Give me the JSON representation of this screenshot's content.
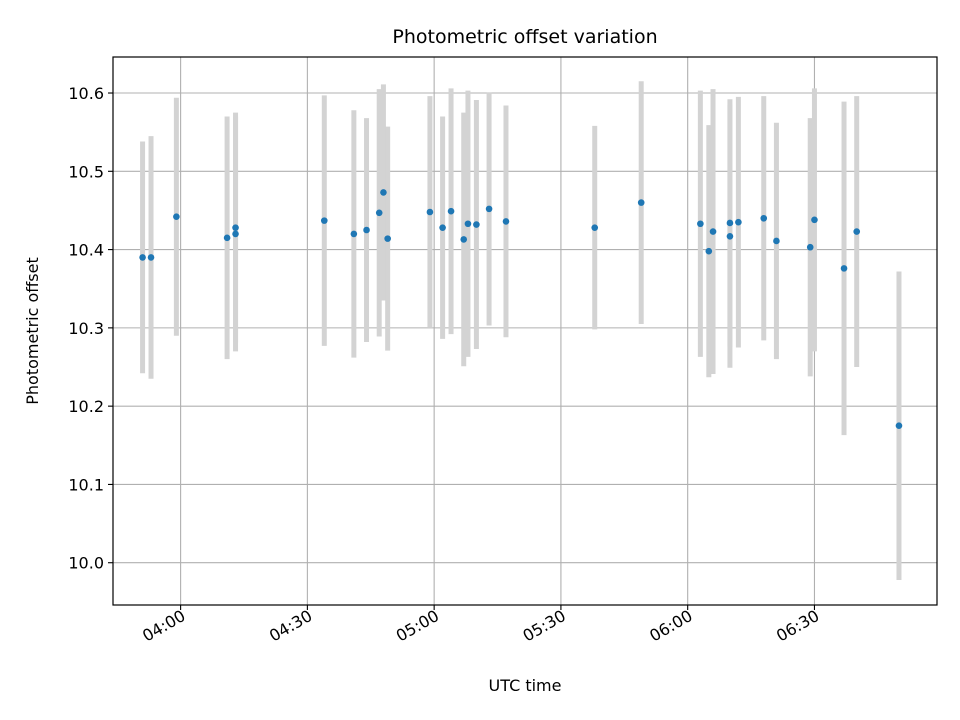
{
  "chart_data": {
    "type": "scatter",
    "title": "Photometric offset variation",
    "xlabel": "UTC time",
    "ylabel": "Photometric offset",
    "x_ticks": [
      "04:00",
      "04:30",
      "05:00",
      "05:30",
      "06:00",
      "06:30"
    ],
    "y_ticks": [
      "10.0",
      "10.1",
      "10.2",
      "10.3",
      "10.4",
      "10.5",
      "10.6"
    ],
    "xlim": [
      "03:44",
      "06:59"
    ],
    "ylim": [
      9.946,
      10.646
    ],
    "grid": true,
    "marker_color": "#1f77b4",
    "errorbar_color": "#d3d3d3",
    "points": [
      {
        "time": "03:51",
        "y": 10.39,
        "yerr": 0.148
      },
      {
        "time": "03:53",
        "y": 10.39,
        "yerr": 0.155
      },
      {
        "time": "03:59",
        "y": 10.442,
        "yerr": 0.152
      },
      {
        "time": "04:11",
        "y": 10.415,
        "yerr": 0.155
      },
      {
        "time": "04:13",
        "y": 10.428,
        "yerr": 0.147
      },
      {
        "time": "04:13",
        "y": 10.42,
        "yerr": 0.15
      },
      {
        "time": "04:34",
        "y": 10.437,
        "yerr": 0.16
      },
      {
        "time": "04:41",
        "y": 10.42,
        "yerr": 0.158
      },
      {
        "time": "04:44",
        "y": 10.425,
        "yerr": 0.143
      },
      {
        "time": "04:47",
        "y": 10.447,
        "yerr": 0.158
      },
      {
        "time": "04:48",
        "y": 10.473,
        "yerr": 0.138
      },
      {
        "time": "04:49",
        "y": 10.414,
        "yerr": 0.143
      },
      {
        "time": "04:59",
        "y": 10.448,
        "yerr": 0.148
      },
      {
        "time": "05:02",
        "y": 10.428,
        "yerr": 0.142
      },
      {
        "time": "05:04",
        "y": 10.449,
        "yerr": 0.157
      },
      {
        "time": "05:07",
        "y": 10.413,
        "yerr": 0.162
      },
      {
        "time": "05:08",
        "y": 10.433,
        "yerr": 0.17
      },
      {
        "time": "05:10",
        "y": 10.432,
        "yerr": 0.159
      },
      {
        "time": "05:13",
        "y": 10.452,
        "yerr": 0.149
      },
      {
        "time": "05:17",
        "y": 10.436,
        "yerr": 0.148
      },
      {
        "time": "05:38",
        "y": 10.428,
        "yerr": 0.13
      },
      {
        "time": "05:49",
        "y": 10.46,
        "yerr": 0.155
      },
      {
        "time": "06:03",
        "y": 10.433,
        "yerr": 0.17
      },
      {
        "time": "06:05",
        "y": 10.398,
        "yerr": 0.161
      },
      {
        "time": "06:06",
        "y": 10.423,
        "yerr": 0.182
      },
      {
        "time": "06:10",
        "y": 10.434,
        "yerr": 0.158
      },
      {
        "time": "06:10",
        "y": 10.417,
        "yerr": 0.168
      },
      {
        "time": "06:12",
        "y": 10.435,
        "yerr": 0.16
      },
      {
        "time": "06:18",
        "y": 10.44,
        "yerr": 0.156
      },
      {
        "time": "06:21",
        "y": 10.411,
        "yerr": 0.151
      },
      {
        "time": "06:29",
        "y": 10.403,
        "yerr": 0.165
      },
      {
        "time": "06:30",
        "y": 10.438,
        "yerr": 0.168
      },
      {
        "time": "06:37",
        "y": 10.376,
        "yerr": 0.213
      },
      {
        "time": "06:40",
        "y": 10.423,
        "yerr": 0.173
      },
      {
        "time": "06:50",
        "y": 10.175,
        "yerr": 0.197
      }
    ]
  }
}
